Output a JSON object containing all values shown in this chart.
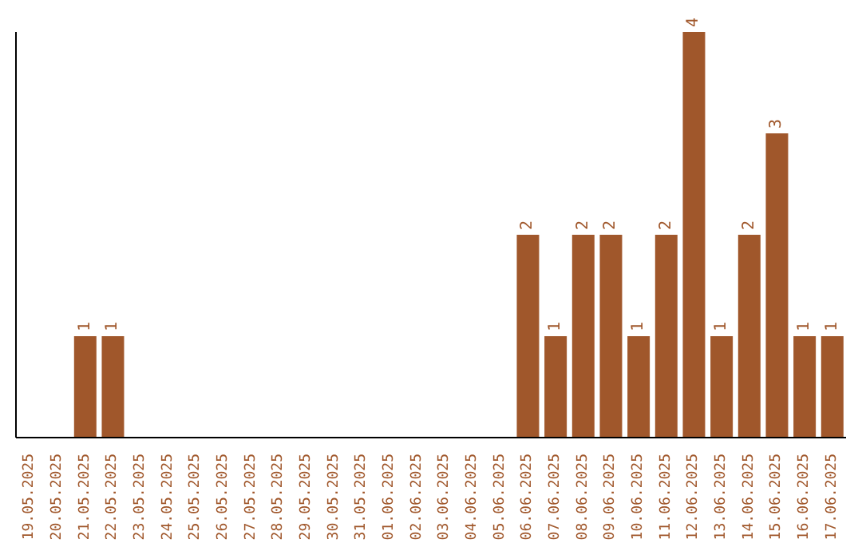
{
  "chart_data": {
    "type": "bar",
    "categories": [
      "19.05.2025",
      "20.05.2025",
      "21.05.2025",
      "22.05.2025",
      "23.05.2025",
      "24.05.2025",
      "25.05.2025",
      "26.05.2025",
      "27.05.2025",
      "28.05.2025",
      "29.05.2025",
      "30.05.2025",
      "31.05.2025",
      "01.06.2025",
      "02.06.2025",
      "03.06.2025",
      "04.06.2025",
      "05.06.2025",
      "06.06.2025",
      "07.06.2025",
      "08.06.2025",
      "09.06.2025",
      "10.06.2025",
      "11.06.2025",
      "12.06.2025",
      "13.06.2025",
      "14.06.2025",
      "15.06.2025",
      "16.06.2025",
      "17.06.2025"
    ],
    "values": [
      0,
      0,
      1,
      1,
      0,
      0,
      0,
      0,
      0,
      0,
      0,
      0,
      0,
      0,
      0,
      0,
      0,
      0,
      2,
      1,
      2,
      2,
      1,
      2,
      4,
      1,
      2,
      3,
      1,
      1
    ],
    "value_labels": [
      null,
      null,
      "1",
      "1",
      null,
      null,
      null,
      null,
      null,
      null,
      null,
      null,
      null,
      null,
      null,
      null,
      null,
      null,
      "2",
      "1",
      "2",
      "2",
      "1",
      "2",
      "4",
      "1",
      "2",
      "3",
      "1",
      "1"
    ],
    "color": "#a0572b",
    "grid": false
  }
}
